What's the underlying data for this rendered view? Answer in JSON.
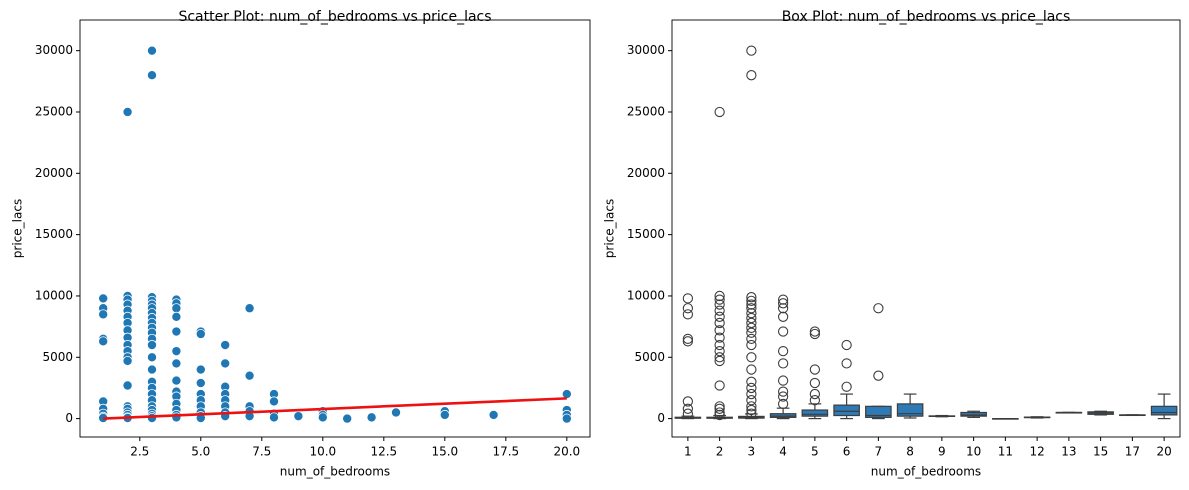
{
  "chart_data": [
    {
      "type": "scatter",
      "title": "Scatter Plot: num_of_bedrooms vs price_lacs",
      "x_label": "num_of_bedrooms",
      "y_label": "price_lacs",
      "color": "#1f77b4",
      "x": [
        1,
        1,
        1,
        1,
        1,
        1,
        1,
        1,
        1,
        1,
        2,
        2,
        2,
        2,
        2,
        2,
        2,
        2,
        2,
        2,
        2,
        2,
        2,
        2,
        2,
        2,
        2,
        2,
        2,
        2,
        3,
        3,
        3,
        3,
        3,
        3,
        3,
        3,
        3,
        3,
        3,
        3,
        3,
        3,
        3,
        3,
        3,
        3,
        3,
        3,
        3,
        3,
        3,
        3,
        4,
        4,
        4,
        4,
        4,
        4,
        4,
        4,
        4,
        4,
        4,
        4,
        4,
        4,
        5,
        5,
        5,
        5,
        5,
        5,
        5,
        5,
        5,
        5,
        6,
        6,
        6,
        6,
        6,
        6,
        6,
        6,
        7,
        7,
        7,
        7,
        7,
        8,
        8,
        8,
        8,
        9,
        10,
        10,
        10,
        11,
        12,
        13,
        15,
        15,
        17,
        20,
        20,
        20,
        20
      ],
      "values": [
        9800,
        9000,
        8500,
        6500,
        6300,
        1400,
        800,
        400,
        150,
        50,
        25000,
        10000,
        9700,
        9300,
        8800,
        8300,
        7800,
        7200,
        6600,
        6000,
        5500,
        5000,
        4700,
        2700,
        1000,
        800,
        500,
        300,
        100,
        50,
        30000,
        28000,
        9900,
        9600,
        9300,
        9000,
        8600,
        8200,
        7800,
        7400,
        7000,
        6500,
        6000,
        5000,
        4000,
        3000,
        2500,
        2000,
        1500,
        1000,
        700,
        400,
        200,
        50,
        9700,
        9400,
        9000,
        8300,
        7100,
        5500,
        4500,
        3100,
        2200,
        1800,
        1200,
        700,
        300,
        100,
        7100,
        6900,
        4000,
        2900,
        2000,
        1500,
        1000,
        500,
        200,
        50,
        6000,
        4500,
        2600,
        2000,
        1500,
        1000,
        500,
        200,
        9000,
        3500,
        1000,
        600,
        200,
        2000,
        1400,
        400,
        100,
        200,
        600,
        300,
        100,
        0,
        100,
        500,
        600,
        300,
        300,
        2000,
        700,
        300,
        0
      ],
      "trend": {
        "color": "#ee1111",
        "x": [
          1,
          20
        ],
        "values": [
          0,
          1650
        ]
      },
      "xlim": [
        0.05,
        20.95
      ],
      "ylim": [
        -1500,
        32500
      ],
      "xticks": [
        2.5,
        {
          "value": 5,
          "label": "5.0"
        },
        7.5,
        {
          "value": 10,
          "label": "10.0"
        },
        12.5,
        {
          "value": 15,
          "label": "15.0"
        },
        17.5,
        {
          "value": 20,
          "label": "20.0"
        }
      ],
      "yticks": [
        0,
        5000,
        10000,
        15000,
        20000,
        25000,
        30000
      ]
    },
    {
      "type": "box",
      "title": "Box Plot: num_of_bedrooms vs price_lacs",
      "x_label": "num_of_bedrooms",
      "y_label": "price_lacs",
      "color": "#2e7ab6",
      "categories": [
        "1",
        "2",
        "3",
        "4",
        "5",
        "6",
        "7",
        "8",
        "9",
        "10",
        "11",
        "12",
        "13",
        "15",
        "17",
        "20"
      ],
      "boxes": [
        {
          "whislo": 0,
          "q1": 30,
          "med": 60,
          "q3": 110,
          "whishi": 200,
          "fliers": [
            9800,
            9000,
            8500,
            6500,
            6300,
            1400,
            800,
            400
          ]
        },
        {
          "whislo": 0,
          "q1": 30,
          "med": 70,
          "q3": 110,
          "whishi": 250,
          "fliers": [
            25000,
            10000,
            9700,
            9300,
            8800,
            8300,
            7800,
            7200,
            6600,
            6000,
            5500,
            5000,
            4700,
            2700,
            1000,
            800,
            500,
            300
          ]
        },
        {
          "whislo": 0,
          "q1": 40,
          "med": 90,
          "q3": 180,
          "whishi": 380,
          "fliers": [
            30000,
            28000,
            9900,
            9600,
            9300,
            9000,
            8600,
            8200,
            7800,
            7400,
            7000,
            6500,
            6000,
            5000,
            4000,
            3000,
            2500,
            2000,
            1500,
            1000,
            700,
            400
          ]
        },
        {
          "whislo": 0,
          "q1": 100,
          "med": 200,
          "q3": 400,
          "whishi": 850,
          "fliers": [
            9700,
            9400,
            9000,
            8300,
            7100,
            5500,
            4500,
            3100,
            2200,
            1800,
            1200
          ]
        },
        {
          "whislo": 0,
          "q1": 200,
          "med": 350,
          "q3": 700,
          "whishi": 1200,
          "fliers": [
            7100,
            6900,
            4000,
            2900,
            2000,
            1500
          ]
        },
        {
          "whislo": 0,
          "q1": 250,
          "med": 600,
          "q3": 1100,
          "whishi": 2000,
          "fliers": [
            6000,
            4500,
            2600
          ]
        },
        {
          "whislo": 0,
          "q1": 100,
          "med": 250,
          "q3": 1000,
          "whishi": 1000,
          "fliers": [
            9000,
            3500
          ]
        },
        {
          "whislo": 50,
          "q1": 200,
          "med": 400,
          "q3": 1200,
          "whishi": 2000,
          "fliers": []
        },
        {
          "whislo": 150,
          "q1": 180,
          "med": 200,
          "q3": 220,
          "whishi": 250,
          "fliers": []
        },
        {
          "whislo": 100,
          "q1": 200,
          "med": 300,
          "q3": 500,
          "whishi": 600,
          "fliers": []
        },
        {
          "whislo": 0,
          "q1": 0,
          "med": 0,
          "q3": 0,
          "whishi": 0,
          "fliers": []
        },
        {
          "whislo": 50,
          "q1": 80,
          "med": 100,
          "q3": 120,
          "whishi": 150,
          "fliers": []
        },
        {
          "whislo": 500,
          "q1": 500,
          "med": 500,
          "q3": 500,
          "whishi": 500,
          "fliers": []
        },
        {
          "whislo": 300,
          "q1": 350,
          "med": 450,
          "q3": 550,
          "whishi": 600,
          "fliers": []
        },
        {
          "whislo": 300,
          "q1": 300,
          "med": 300,
          "q3": 300,
          "whishi": 300,
          "fliers": []
        },
        {
          "whislo": 0,
          "q1": 300,
          "med": 500,
          "q3": 1000,
          "whishi": 2000,
          "fliers": []
        }
      ],
      "ylim": [
        -1500,
        32500
      ],
      "yticks": [
        0,
        5000,
        10000,
        15000,
        20000,
        25000,
        30000
      ]
    }
  ]
}
